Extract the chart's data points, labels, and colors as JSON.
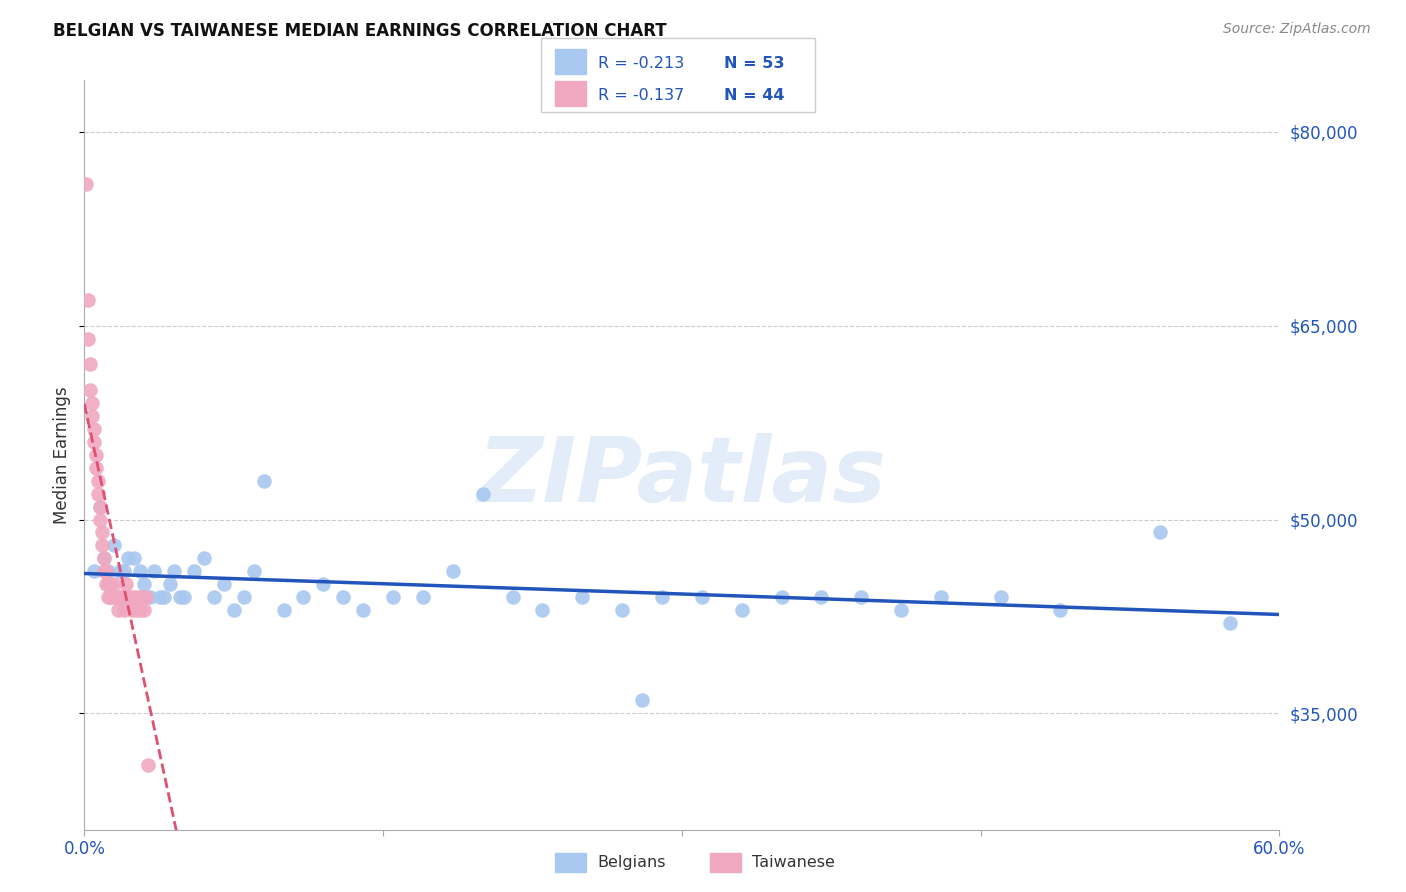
{
  "title": "BELGIAN VS TAIWANESE MEDIAN EARNINGS CORRELATION CHART",
  "source": "Source: ZipAtlas.com",
  "ylabel": "Median Earnings",
  "ytick_labels": [
    "$35,000",
    "$50,000",
    "$65,000",
    "$80,000"
  ],
  "ytick_values": [
    35000,
    50000,
    65000,
    80000
  ],
  "ymin": 26000,
  "ymax": 84000,
  "xmin": 0.0,
  "xmax": 0.6,
  "belgian_color": "#a8c8f0",
  "taiwanese_color": "#f0a8c0",
  "belgian_line_color": "#2255bb",
  "taiwanese_line_color": "#e05070",
  "legend_R_belgian": "R = -0.213",
  "legend_N_belgian": "N = 53",
  "legend_R_taiwanese": "R = -0.137",
  "legend_N_taiwanese": "N = 44",
  "watermark": "ZIPatlas",
  "belgian_x": [
    0.005,
    0.008,
    0.01,
    0.012,
    0.015,
    0.018,
    0.02,
    0.022,
    0.025,
    0.028,
    0.03,
    0.033,
    0.035,
    0.038,
    0.04,
    0.043,
    0.045,
    0.048,
    0.05,
    0.055,
    0.06,
    0.065,
    0.07,
    0.075,
    0.08,
    0.085,
    0.09,
    0.1,
    0.11,
    0.12,
    0.13,
    0.14,
    0.155,
    0.17,
    0.185,
    0.2,
    0.215,
    0.23,
    0.25,
    0.27,
    0.29,
    0.31,
    0.33,
    0.35,
    0.37,
    0.39,
    0.41,
    0.43,
    0.46,
    0.49,
    0.28,
    0.54,
    0.575
  ],
  "belgian_y": [
    46000,
    51000,
    47000,
    46000,
    48000,
    46000,
    46000,
    47000,
    47000,
    46000,
    45000,
    44000,
    46000,
    44000,
    44000,
    45000,
    46000,
    44000,
    44000,
    46000,
    47000,
    44000,
    45000,
    43000,
    44000,
    46000,
    53000,
    43000,
    44000,
    45000,
    44000,
    43000,
    44000,
    44000,
    46000,
    52000,
    44000,
    43000,
    44000,
    43000,
    44000,
    44000,
    43000,
    44000,
    44000,
    44000,
    43000,
    44000,
    44000,
    43000,
    36000,
    49000,
    42000
  ],
  "taiwanese_x": [
    0.001,
    0.002,
    0.002,
    0.003,
    0.003,
    0.004,
    0.004,
    0.005,
    0.005,
    0.006,
    0.006,
    0.007,
    0.007,
    0.008,
    0.008,
    0.009,
    0.009,
    0.01,
    0.01,
    0.011,
    0.011,
    0.012,
    0.012,
    0.013,
    0.013,
    0.014,
    0.015,
    0.016,
    0.017,
    0.018,
    0.019,
    0.02,
    0.021,
    0.022,
    0.023,
    0.024,
    0.025,
    0.026,
    0.027,
    0.028,
    0.029,
    0.03,
    0.031,
    0.032
  ],
  "taiwanese_y": [
    76000,
    67000,
    64000,
    62000,
    60000,
    59000,
    58000,
    57000,
    56000,
    55000,
    54000,
    53000,
    52000,
    51000,
    50000,
    49000,
    48000,
    47000,
    46000,
    46000,
    45000,
    45000,
    44000,
    44000,
    45000,
    44000,
    45000,
    44000,
    43000,
    44000,
    44000,
    43000,
    45000,
    44000,
    44000,
    43000,
    44000,
    43000,
    44000,
    43000,
    44000,
    43000,
    44000,
    31000
  ]
}
